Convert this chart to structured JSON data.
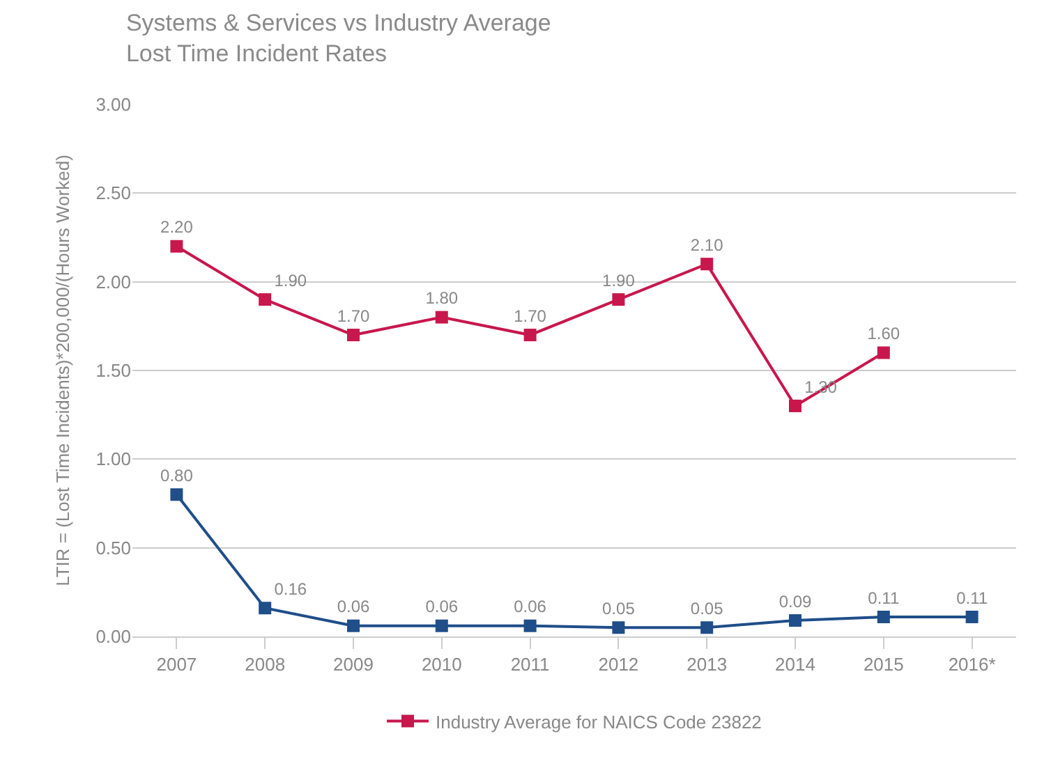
{
  "chart_data": {
    "type": "line",
    "title": "Systems & Services vs Industry Average\nLost Time Incident Rates",
    "ylabel": "LTIR = (Lost Time Incidents)*200,000/(Hours Worked)",
    "categories": [
      "2007",
      "2008",
      "2009",
      "2010",
      "2011",
      "2012",
      "2013",
      "2014",
      "2015",
      "2016*"
    ],
    "series": [
      {
        "color": "#1f4e89",
        "values": [
          0.8,
          0.16,
          0.06,
          0.06,
          0.06,
          0.05,
          0.05,
          0.09,
          0.11,
          0.11
        ],
        "value_labels": [
          "0.80",
          "0.16",
          "0.06",
          "0.06",
          "0.06",
          "0.05",
          "0.05",
          "0.09",
          "0.11",
          "0.11"
        ]
      },
      {
        "name": "Industry Average for NAICS Code 23822",
        "color": "#c8174d",
        "values": [
          2.2,
          1.9,
          1.7,
          1.8,
          1.7,
          1.9,
          2.1,
          1.3,
          1.6,
          null
        ],
        "value_labels": [
          "2.20",
          "1.90",
          "1.70",
          "1.80",
          "1.70",
          "1.90",
          "2.10",
          "1.30",
          "1.60",
          null
        ]
      }
    ],
    "ylim": [
      0,
      3
    ],
    "yticks": [
      {
        "value": 0,
        "label": "0.00"
      },
      {
        "value": 0.5,
        "label": "0.50"
      },
      {
        "value": 1,
        "label": "1.00"
      },
      {
        "value": 1.5,
        "label": "1.50"
      },
      {
        "value": 2,
        "label": "2.00"
      },
      {
        "value": 2.5,
        "label": "2.50"
      },
      {
        "value": 3,
        "label": "3.00"
      }
    ],
    "grid": "y",
    "legend": "bottom",
    "marker": "square",
    "line_style": "solid"
  }
}
